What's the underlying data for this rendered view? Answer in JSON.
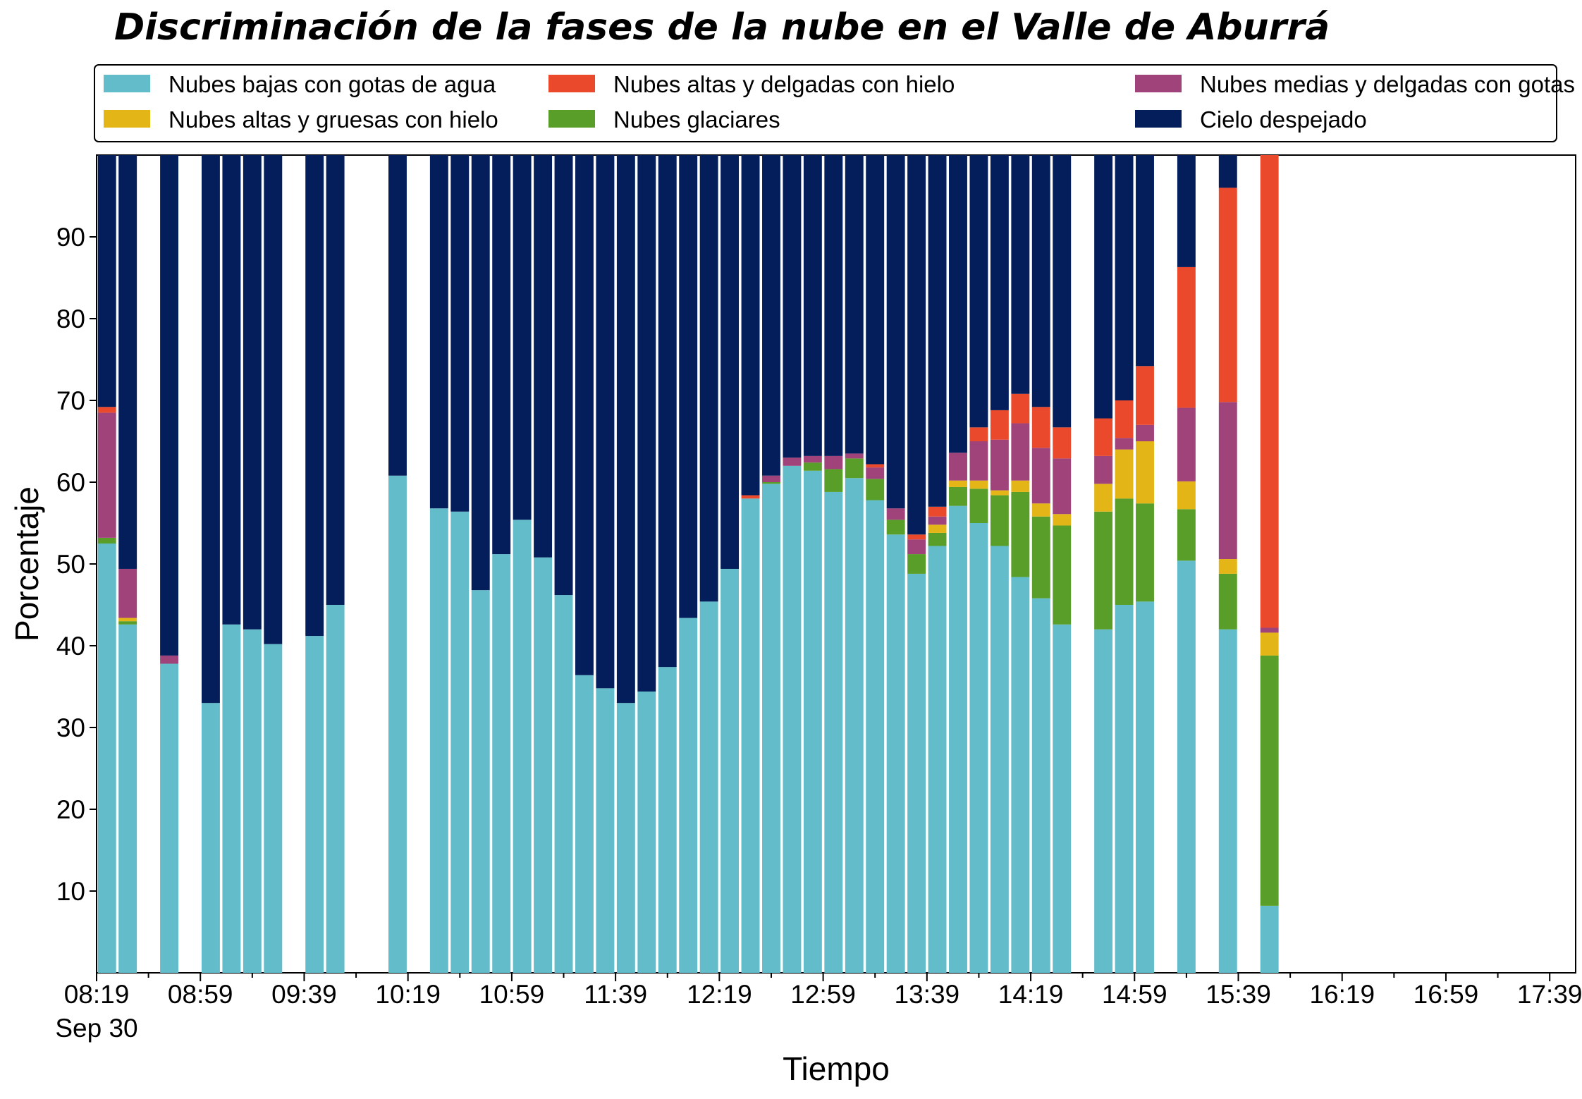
{
  "chart_data": {
    "type": "bar",
    "stacked": true,
    "title": "Discriminación de la fases de la nube en el Valle de Aburrá",
    "xlabel": "Tiempo",
    "ylabel": "Porcentaje",
    "ylim": [
      0,
      100
    ],
    "yticks": [
      10,
      20,
      30,
      40,
      50,
      60,
      70,
      80,
      90
    ],
    "x_tick_labels": [
      "08:19",
      "08:59",
      "09:39",
      "10:19",
      "10:59",
      "11:39",
      "12:19",
      "12:59",
      "13:39",
      "14:19",
      "14:59",
      "15:39",
      "16:19",
      "16:59",
      "17:39"
    ],
    "x_tick_sublabel": "Sep 30",
    "x_start": "08:19",
    "x_end": "17:49",
    "bar_step_minutes": 8,
    "legend_position": "top",
    "grid": false,
    "legend": [
      {
        "name": "Nubes bajas con gotas de agua",
        "color": "#63bcc9"
      },
      {
        "name": "Nubes altas y gruesas con hielo",
        "color": "#e3b517"
      },
      {
        "name": "Nubes altas y delgadas con hielo",
        "color": "#ea4a2b"
      },
      {
        "name": "Nubes glaciares",
        "color": "#5a9e2a"
      },
      {
        "name": "Nubes medias y delgadas con gotas de agua",
        "color": "#a0437a"
      },
      {
        "name": "Cielo despejado",
        "color": "#041e5c"
      }
    ],
    "stack_order": [
      "Nubes bajas con gotas de agua",
      "Nubes glaciares",
      "Nubes altas y gruesas con hielo",
      "Nubes medias y delgadas con gotas de agua",
      "Nubes altas y delgadas con hielo",
      "Cielo despejado"
    ],
    "bars": [
      {
        "time": "08:23",
        "values": [
          52.5,
          0.7,
          0,
          15.3,
          0.7,
          30.8
        ]
      },
      {
        "time": "08:31",
        "values": [
          42.6,
          0.4,
          0.4,
          6.0,
          0,
          50.6
        ]
      },
      {
        "time": "08:47",
        "values": [
          37.8,
          0,
          0,
          1.0,
          0,
          61.2
        ]
      },
      {
        "time": "09:03",
        "values": [
          33.0,
          0,
          0,
          0,
          0,
          67.0
        ]
      },
      {
        "time": "09:11",
        "values": [
          42.6,
          0,
          0,
          0,
          0,
          57.4
        ]
      },
      {
        "time": "09:19",
        "values": [
          42.0,
          0,
          0,
          0,
          0,
          58.0
        ]
      },
      {
        "time": "09:27",
        "values": [
          40.2,
          0,
          0,
          0,
          0,
          59.8
        ]
      },
      {
        "time": "09:43",
        "values": [
          41.2,
          0,
          0,
          0,
          0,
          58.8
        ]
      },
      {
        "time": "09:51",
        "values": [
          45.0,
          0,
          0,
          0,
          0,
          55.0
        ]
      },
      {
        "time": "10:15",
        "values": [
          60.8,
          0,
          0,
          0,
          0,
          39.2
        ]
      },
      {
        "time": "10:31",
        "values": [
          56.8,
          0,
          0,
          0,
          0,
          43.2
        ]
      },
      {
        "time": "10:39",
        "values": [
          56.4,
          0,
          0,
          0,
          0,
          43.6
        ]
      },
      {
        "time": "10:47",
        "values": [
          46.8,
          0,
          0,
          0,
          0,
          53.2
        ]
      },
      {
        "time": "10:55",
        "values": [
          51.2,
          0,
          0,
          0,
          0,
          48.8
        ]
      },
      {
        "time": "11:03",
        "values": [
          55.4,
          0,
          0,
          0,
          0,
          44.6
        ]
      },
      {
        "time": "11:11",
        "values": [
          50.8,
          0,
          0,
          0,
          0,
          49.2
        ]
      },
      {
        "time": "11:19",
        "values": [
          46.2,
          0,
          0,
          0,
          0,
          53.8
        ]
      },
      {
        "time": "11:27",
        "values": [
          36.4,
          0,
          0,
          0,
          0,
          63.6
        ]
      },
      {
        "time": "11:35",
        "values": [
          34.8,
          0,
          0,
          0,
          0,
          65.2
        ]
      },
      {
        "time": "11:43",
        "values": [
          33.0,
          0,
          0,
          0,
          0,
          67.0
        ]
      },
      {
        "time": "11:51",
        "values": [
          34.4,
          0,
          0,
          0,
          0,
          65.6
        ]
      },
      {
        "time": "11:59",
        "values": [
          37.4,
          0,
          0,
          0,
          0,
          62.6
        ]
      },
      {
        "time": "12:07",
        "values": [
          43.4,
          0,
          0,
          0,
          0,
          56.6
        ]
      },
      {
        "time": "12:15",
        "values": [
          45.4,
          0,
          0,
          0,
          0,
          54.6
        ]
      },
      {
        "time": "12:23",
        "values": [
          49.4,
          0,
          0,
          0,
          0,
          50.6
        ]
      },
      {
        "time": "12:31",
        "values": [
          58.0,
          0,
          0,
          0,
          0.4,
          41.6
        ]
      },
      {
        "time": "12:39",
        "values": [
          59.8,
          0.2,
          0,
          0.8,
          0,
          39.2
        ]
      },
      {
        "time": "12:47",
        "values": [
          62.0,
          0,
          0,
          1.0,
          0,
          37.0
        ]
      },
      {
        "time": "12:55",
        "values": [
          61.4,
          1.0,
          0,
          0.8,
          0,
          36.8
        ]
      },
      {
        "time": "13:03",
        "values": [
          58.8,
          2.8,
          0,
          1.6,
          0,
          36.8
        ]
      },
      {
        "time": "13:11",
        "values": [
          60.5,
          2.4,
          0,
          0.6,
          0,
          36.5
        ]
      },
      {
        "time": "13:19",
        "values": [
          57.8,
          2.6,
          0,
          1.4,
          0.4,
          37.8
        ]
      },
      {
        "time": "13:27",
        "values": [
          53.6,
          1.8,
          0,
          1.4,
          0,
          43.2
        ]
      },
      {
        "time": "13:35",
        "values": [
          48.8,
          2.4,
          0,
          1.8,
          0.6,
          46.4
        ]
      },
      {
        "time": "13:43",
        "values": [
          52.2,
          1.6,
          1.0,
          1.0,
          1.2,
          43.0
        ]
      },
      {
        "time": "13:51",
        "values": [
          57.1,
          2.3,
          0.8,
          3.4,
          0,
          36.4
        ]
      },
      {
        "time": "13:59",
        "values": [
          55.0,
          4.2,
          1.0,
          4.8,
          1.7,
          33.3
        ]
      },
      {
        "time": "14:07",
        "values": [
          52.2,
          6.2,
          0.6,
          6.2,
          3.6,
          31.2
        ]
      },
      {
        "time": "14:15",
        "values": [
          48.4,
          10.4,
          1.4,
          7.0,
          3.6,
          29.2
        ]
      },
      {
        "time": "14:23",
        "values": [
          45.8,
          10.0,
          1.6,
          6.8,
          5.0,
          30.8
        ]
      },
      {
        "time": "14:31",
        "values": [
          42.6,
          12.1,
          1.4,
          6.8,
          3.8,
          33.3
        ]
      },
      {
        "time": "14:47",
        "values": [
          42.0,
          14.4,
          3.4,
          3.4,
          4.6,
          32.2
        ]
      },
      {
        "time": "14:55",
        "values": [
          45.0,
          13.0,
          6.0,
          1.4,
          4.6,
          30.0
        ]
      },
      {
        "time": "15:03",
        "values": [
          45.4,
          12.0,
          7.6,
          2.0,
          7.2,
          25.8
        ]
      },
      {
        "time": "15:19",
        "values": [
          50.4,
          6.3,
          3.4,
          9.0,
          17.2,
          13.7
        ]
      },
      {
        "time": "15:35",
        "values": [
          42.0,
          6.8,
          1.8,
          19.2,
          26.2,
          4.0
        ]
      },
      {
        "time": "15:51",
        "values": [
          8.2,
          30.6,
          2.8,
          0.6,
          57.8,
          0
        ]
      }
    ]
  }
}
